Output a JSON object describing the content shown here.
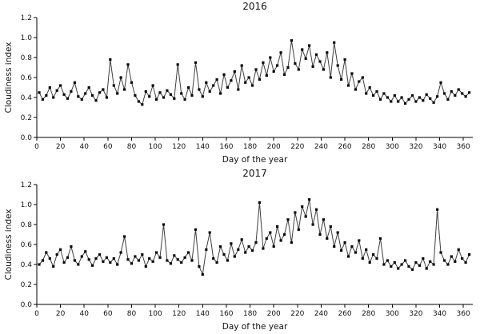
{
  "chart_data": [
    {
      "type": "line",
      "title": "2016",
      "xlabel": "Day of the year",
      "ylabel": "Cloudiness index",
      "xlim": [
        0,
        368
      ],
      "ylim": [
        0,
        1.2
      ],
      "xticks": [
        0,
        20,
        40,
        60,
        80,
        100,
        120,
        140,
        160,
        180,
        200,
        220,
        240,
        260,
        280,
        300,
        320,
        340,
        360
      ],
      "yticks": [
        0.0,
        0.2,
        0.4,
        0.6,
        0.8,
        1.0,
        1.2
      ],
      "marker": "square",
      "line_color": "#3f3f3f",
      "marker_color": "#0a0a0a",
      "x": [
        2,
        5,
        8,
        11,
        14,
        17,
        20,
        23,
        26,
        29,
        32,
        35,
        38,
        41,
        44,
        47,
        50,
        53,
        56,
        59,
        62,
        65,
        68,
        71,
        74,
        77,
        80,
        83,
        86,
        89,
        92,
        95,
        98,
        101,
        104,
        107,
        110,
        113,
        116,
        119,
        122,
        125,
        128,
        131,
        134,
        137,
        140,
        143,
        146,
        149,
        152,
        155,
        158,
        161,
        164,
        167,
        170,
        173,
        176,
        179,
        182,
        185,
        188,
        191,
        194,
        197,
        200,
        203,
        206,
        209,
        212,
        215,
        218,
        221,
        224,
        227,
        230,
        233,
        236,
        239,
        242,
        245,
        248,
        251,
        254,
        257,
        260,
        263,
        266,
        269,
        272,
        275,
        278,
        281,
        284,
        287,
        290,
        293,
        296,
        299,
        302,
        305,
        308,
        311,
        314,
        317,
        320,
        323,
        326,
        329,
        332,
        335,
        338,
        341,
        344,
        347,
        350,
        353,
        356,
        359,
        362,
        365
      ],
      "y": [
        0.45,
        0.38,
        0.42,
        0.5,
        0.4,
        0.47,
        0.52,
        0.43,
        0.39,
        0.46,
        0.55,
        0.41,
        0.38,
        0.44,
        0.5,
        0.42,
        0.37,
        0.45,
        0.48,
        0.4,
        0.78,
        0.52,
        0.44,
        0.6,
        0.48,
        0.73,
        0.55,
        0.42,
        0.36,
        0.33,
        0.46,
        0.41,
        0.52,
        0.38,
        0.45,
        0.4,
        0.47,
        0.43,
        0.39,
        0.73,
        0.44,
        0.38,
        0.5,
        0.42,
        0.75,
        0.48,
        0.41,
        0.55,
        0.46,
        0.52,
        0.58,
        0.44,
        0.63,
        0.5,
        0.57,
        0.66,
        0.48,
        0.72,
        0.55,
        0.6,
        0.52,
        0.68,
        0.58,
        0.75,
        0.62,
        0.8,
        0.66,
        0.72,
        0.85,
        0.63,
        0.7,
        0.97,
        0.74,
        0.68,
        0.88,
        0.79,
        0.92,
        0.71,
        0.83,
        0.76,
        0.68,
        0.85,
        0.6,
        0.95,
        0.72,
        0.58,
        0.78,
        0.52,
        0.64,
        0.48,
        0.56,
        0.6,
        0.44,
        0.5,
        0.42,
        0.46,
        0.38,
        0.44,
        0.4,
        0.36,
        0.42,
        0.36,
        0.4,
        0.34,
        0.38,
        0.42,
        0.36,
        0.4,
        0.37,
        0.43,
        0.39,
        0.35,
        0.41,
        0.55,
        0.44,
        0.38,
        0.46,
        0.42,
        0.48,
        0.44,
        0.41,
        0.45
      ]
    },
    {
      "type": "line",
      "title": "2017",
      "xlabel": "Day of the year",
      "ylabel": "Cloudiness index",
      "xlim": [
        0,
        368
      ],
      "ylim": [
        0,
        1.2
      ],
      "xticks": [
        0,
        20,
        40,
        60,
        80,
        100,
        120,
        140,
        160,
        180,
        200,
        220,
        240,
        260,
        280,
        300,
        320,
        340,
        360
      ],
      "yticks": [
        0.0,
        0.2,
        0.4,
        0.6,
        0.8,
        1.0,
        1.2
      ],
      "marker": "square",
      "line_color": "#3f3f3f",
      "marker_color": "#0a0a0a",
      "x": [
        2,
        5,
        8,
        11,
        14,
        17,
        20,
        23,
        26,
        29,
        32,
        35,
        38,
        41,
        44,
        47,
        50,
        53,
        56,
        59,
        62,
        65,
        68,
        71,
        74,
        77,
        80,
        83,
        86,
        89,
        92,
        95,
        98,
        101,
        104,
        107,
        110,
        113,
        116,
        119,
        122,
        125,
        128,
        131,
        134,
        137,
        140,
        143,
        146,
        149,
        152,
        155,
        158,
        161,
        164,
        167,
        170,
        173,
        176,
        179,
        182,
        185,
        188,
        191,
        194,
        197,
        200,
        203,
        206,
        209,
        212,
        215,
        218,
        221,
        224,
        227,
        230,
        233,
        236,
        239,
        242,
        245,
        248,
        251,
        254,
        257,
        260,
        263,
        266,
        269,
        272,
        275,
        278,
        281,
        284,
        287,
        290,
        293,
        296,
        299,
        302,
        305,
        308,
        311,
        314,
        317,
        320,
        323,
        326,
        329,
        332,
        335,
        338,
        341,
        344,
        347,
        350,
        353,
        356,
        359,
        362,
        365
      ],
      "y": [
        0.4,
        0.44,
        0.52,
        0.46,
        0.38,
        0.5,
        0.55,
        0.42,
        0.47,
        0.58,
        0.44,
        0.4,
        0.48,
        0.53,
        0.45,
        0.39,
        0.46,
        0.5,
        0.43,
        0.47,
        0.42,
        0.46,
        0.4,
        0.52,
        0.68,
        0.45,
        0.41,
        0.48,
        0.44,
        0.5,
        0.38,
        0.46,
        0.43,
        0.52,
        0.47,
        0.8,
        0.44,
        0.41,
        0.49,
        0.45,
        0.42,
        0.47,
        0.52,
        0.44,
        0.75,
        0.38,
        0.3,
        0.55,
        0.72,
        0.46,
        0.42,
        0.58,
        0.5,
        0.44,
        0.61,
        0.48,
        0.55,
        0.65,
        0.52,
        0.58,
        0.54,
        0.62,
        1.02,
        0.56,
        0.66,
        0.72,
        0.58,
        0.78,
        0.64,
        0.7,
        0.85,
        0.62,
        0.92,
        0.75,
        0.98,
        0.88,
        1.05,
        0.8,
        0.95,
        0.7,
        0.85,
        0.66,
        0.78,
        0.58,
        0.72,
        0.54,
        0.62,
        0.48,
        0.58,
        0.52,
        0.64,
        0.46,
        0.55,
        0.42,
        0.5,
        0.46,
        0.66,
        0.4,
        0.44,
        0.38,
        0.42,
        0.36,
        0.4,
        0.44,
        0.38,
        0.35,
        0.42,
        0.39,
        0.46,
        0.36,
        0.43,
        0.4,
        0.95,
        0.52,
        0.44,
        0.4,
        0.48,
        0.43,
        0.55,
        0.46,
        0.42,
        0.5
      ]
    }
  ]
}
